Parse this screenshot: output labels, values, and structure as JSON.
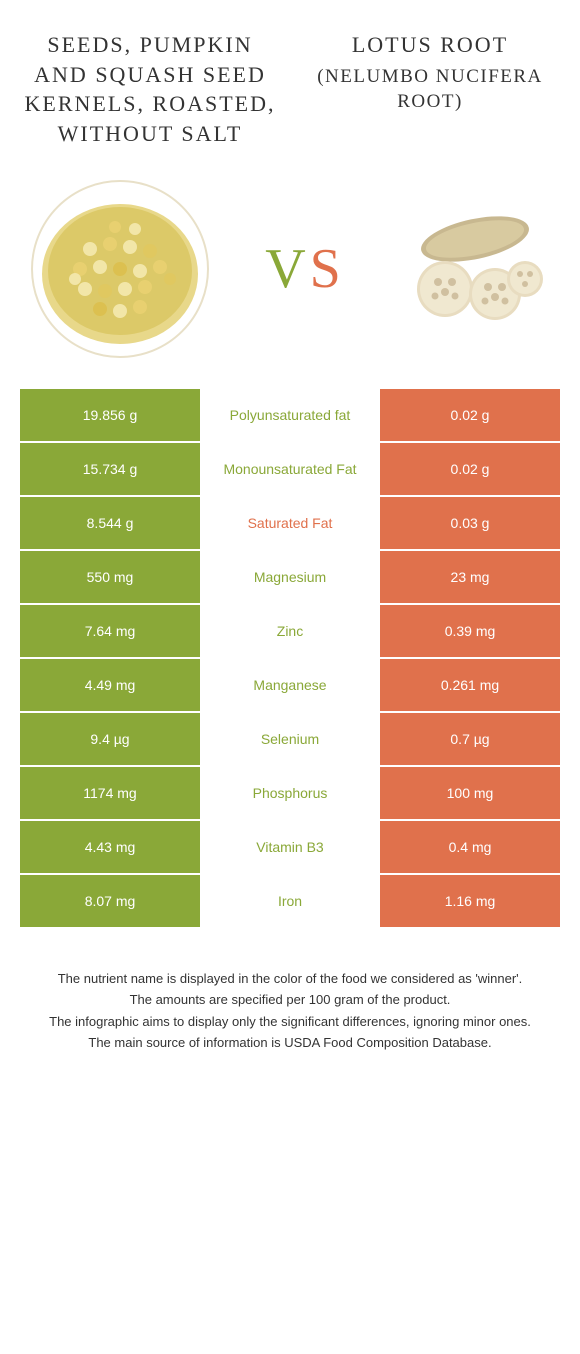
{
  "food1": {
    "title": "SEEDS, PUMPKIN AND SQUASH SEED KERNELS, ROASTED, WITHOUT SALT",
    "subtitle": ""
  },
  "food2": {
    "title": "LOTUS ROOT",
    "subtitle": "(NELUMBO NUCIFERA ROOT)"
  },
  "vs": {
    "v": "V",
    "s": "S"
  },
  "colors": {
    "green": "#8aa838",
    "orange": "#e0714c"
  },
  "rows": [
    {
      "left": "19.856 g",
      "label": "Polyunsaturated fat",
      "right": "0.02 g",
      "winner": "green"
    },
    {
      "left": "15.734 g",
      "label": "Monounsaturated Fat",
      "right": "0.02 g",
      "winner": "green"
    },
    {
      "left": "8.544 g",
      "label": "Saturated Fat",
      "right": "0.03 g",
      "winner": "orange"
    },
    {
      "left": "550 mg",
      "label": "Magnesium",
      "right": "23 mg",
      "winner": "green"
    },
    {
      "left": "7.64 mg",
      "label": "Zinc",
      "right": "0.39 mg",
      "winner": "green"
    },
    {
      "left": "4.49 mg",
      "label": "Manganese",
      "right": "0.261 mg",
      "winner": "green"
    },
    {
      "left": "9.4 µg",
      "label": "Selenium",
      "right": "0.7 µg",
      "winner": "green"
    },
    {
      "left": "1174 mg",
      "label": "Phosphorus",
      "right": "100 mg",
      "winner": "green"
    },
    {
      "left": "4.43 mg",
      "label": "Vitamin B3",
      "right": "0.4 mg",
      "winner": "green"
    },
    {
      "left": "8.07 mg",
      "label": "Iron",
      "right": "1.16 mg",
      "winner": "green"
    }
  ],
  "footer": {
    "l1": "The nutrient name is displayed in the color of the food we considered as 'winner'.",
    "l2": "The amounts are specified per 100 gram of the product.",
    "l3": "The infographic aims to display only the significant differences, ignoring minor ones.",
    "l4": "The main source of information is USDA Food Composition Database."
  }
}
